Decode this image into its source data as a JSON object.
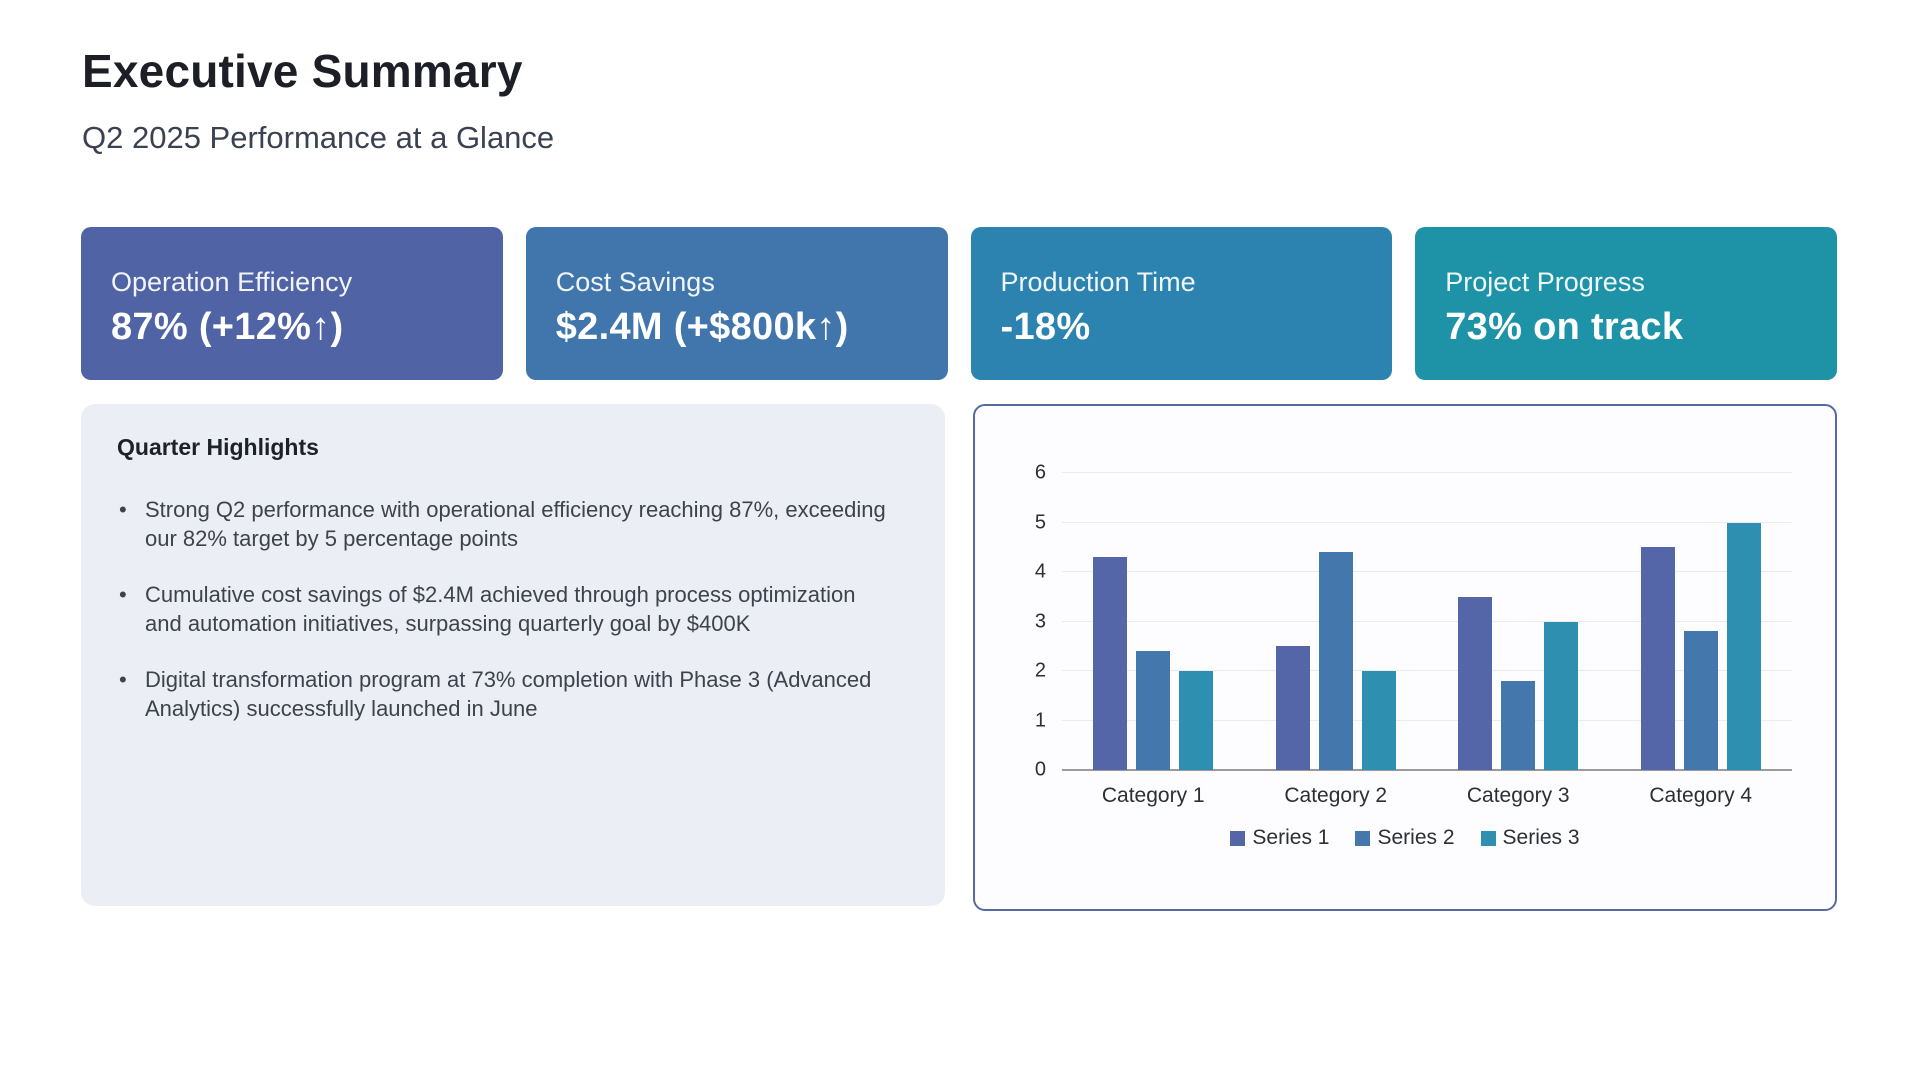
{
  "page": {
    "title": "Executive Summary",
    "subtitle": "Q2 2025 Performance at a Glance"
  },
  "kpi_cards": [
    {
      "label": "Operation Efficiency",
      "value": "87% (+12%↑)",
      "color": "#4f63a5"
    },
    {
      "label": "Cost Savings",
      "value": "$2.4M (+$800k↑)",
      "color": "#4176ac"
    },
    {
      "label": "Production Time",
      "value": "-18%",
      "color": "#2c83af"
    },
    {
      "label": "Project Progress",
      "value": "73% on track",
      "color": "#1e93a7"
    }
  ],
  "highlights": {
    "title": "Quarter Highlights",
    "bullets": [
      "Strong Q2 performance with operational efficiency reaching 87%, exceeding our 82% target by 5 percentage points",
      "Cumulative cost savings of $2.4M achieved through process optimization and automation initiatives, surpassing quarterly goal by $400K",
      "Digital transformation program at 73% completion with Phase 3 (Advanced Analytics) successfully launched in June"
    ]
  },
  "chart_data": {
    "type": "bar",
    "title": "",
    "xlabel": "",
    "ylabel": "",
    "categories": [
      "Category 1",
      "Category 2",
      "Category 3",
      "Category 4"
    ],
    "series": [
      {
        "name": "Series 1",
        "color": "#5465a8",
        "values": [
          4.3,
          2.5,
          3.5,
          4.5
        ]
      },
      {
        "name": "Series 2",
        "color": "#4478ad",
        "values": [
          2.4,
          4.4,
          1.8,
          2.8
        ]
      },
      {
        "name": "Series 3",
        "color": "#2e8fb0",
        "values": [
          2.0,
          2.0,
          3.0,
          5.0
        ]
      }
    ],
    "ylim": [
      0,
      6
    ],
    "yticks": [
      0,
      1,
      2,
      3,
      4,
      5,
      6
    ],
    "grid": true,
    "legend_position": "bottom"
  }
}
